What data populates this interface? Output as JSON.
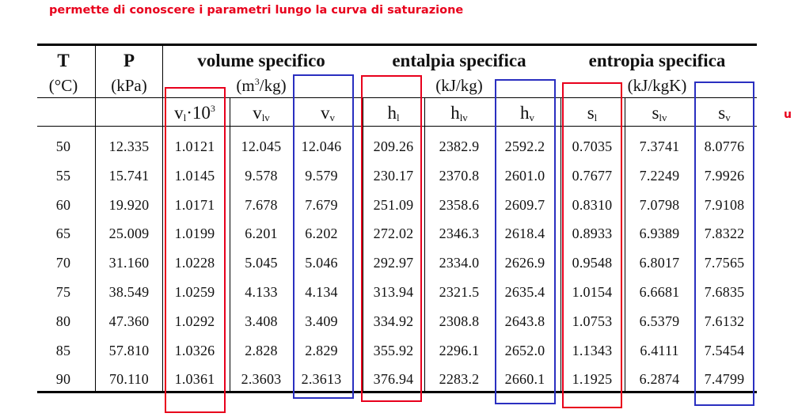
{
  "caption": "permette di conoscere i parametri lungo la curva di saturazione",
  "edge_letter": "u",
  "table": {
    "group_headers": {
      "T": "T",
      "P": "P",
      "volume": "volume specifico",
      "entalpia": "entalpia specifica",
      "entropia": "entropia specifica"
    },
    "units": {
      "T": "(°C)",
      "P": "(kPa)",
      "volume_open": "(m",
      "volume_exp": "3",
      "volume_close": "/kg)",
      "entalpia": "(kJ/kg)",
      "entropia": "(kJ/kgK)"
    },
    "symbols": {
      "vl_base": "v",
      "vl_sub": "l",
      "vl_mult": "·10",
      "vl_exp": "3",
      "vlv_base": "v",
      "vlv_sub": "lv",
      "vv_base": "v",
      "vv_sub": "v",
      "hl_base": "h",
      "hl_sub": "l",
      "hlv_base": "h",
      "hlv_sub": "lv",
      "hv_base": "h",
      "hv_sub": "v",
      "sl_base": "s",
      "sl_sub": "l",
      "slv_base": "s",
      "slv_sub": "lv",
      "sv_base": "s",
      "sv_sub": "v"
    },
    "rows": [
      [
        "50",
        "12.335",
        "1.0121",
        "12.045",
        "12.046",
        "209.26",
        "2382.9",
        "2592.2",
        "0.7035",
        "7.3741",
        "8.0776"
      ],
      [
        "55",
        "15.741",
        "1.0145",
        "9.578",
        "9.579",
        "230.17",
        "2370.8",
        "2601.0",
        "0.7677",
        "7.2249",
        "7.9926"
      ],
      [
        "60",
        "19.920",
        "1.0171",
        "7.678",
        "7.679",
        "251.09",
        "2358.6",
        "2609.7",
        "0.8310",
        "7.0798",
        "7.9108"
      ],
      [
        "65",
        "25.009",
        "1.0199",
        "6.201",
        "6.202",
        "272.02",
        "2346.3",
        "2618.4",
        "0.8933",
        "6.9389",
        "7.8322"
      ],
      [
        "70",
        "31.160",
        "1.0228",
        "5.045",
        "5.046",
        "292.97",
        "2334.0",
        "2626.9",
        "0.9548",
        "6.8017",
        "7.7565"
      ],
      [
        "75",
        "38.549",
        "1.0259",
        "4.133",
        "4.134",
        "313.94",
        "2321.5",
        "2635.4",
        "1.0154",
        "6.6681",
        "7.6835"
      ],
      [
        "80",
        "47.360",
        "1.0292",
        "3.408",
        "3.409",
        "334.92",
        "2308.8",
        "2643.8",
        "1.0753",
        "6.5379",
        "7.6132"
      ],
      [
        "85",
        "57.810",
        "1.0326",
        "2.828",
        "2.829",
        "355.92",
        "2296.1",
        "2652.0",
        "1.1343",
        "6.4111",
        "7.5454"
      ],
      [
        "90",
        "70.110",
        "1.0361",
        "2.3603",
        "2.3613",
        "376.94",
        "2283.2",
        "2660.1",
        "1.1925",
        "6.2874",
        "7.4799"
      ]
    ]
  },
  "highlight_colors": {
    "liquid": "#e8001c",
    "vapor": "#2a2fc0"
  }
}
